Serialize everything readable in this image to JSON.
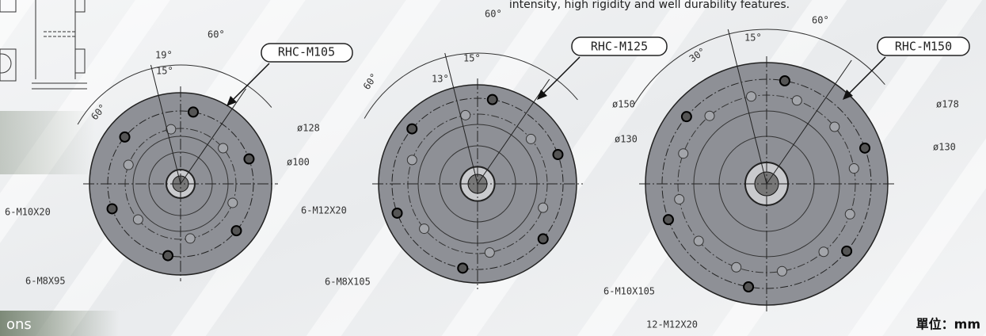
{
  "header": {
    "text": "intensity, high rigidity and well durability features."
  },
  "side_label": "ons",
  "unit": "單位：mm",
  "drawings": [
    {
      "model": "RHC-M105",
      "angles": [
        "60°",
        "19°",
        "15°",
        "60°"
      ],
      "diameters": [
        "ø128",
        "ø100"
      ],
      "holes": [
        "6-M10X20",
        "6-M8X95"
      ]
    },
    {
      "model": "RHC-M125",
      "angles": [
        "60°",
        "13°",
        "15°",
        "60°"
      ],
      "diameters": [
        "ø150",
        "ø130"
      ],
      "holes": [
        "6-M12X20",
        "6-M8X105"
      ]
    },
    {
      "model": "RHC-M150",
      "angles": [
        "15°",
        "60°",
        "30°"
      ],
      "diameters": [
        "ø178",
        "ø130"
      ],
      "holes": [
        "6-M10X105",
        "12-M12X20"
      ]
    }
  ]
}
